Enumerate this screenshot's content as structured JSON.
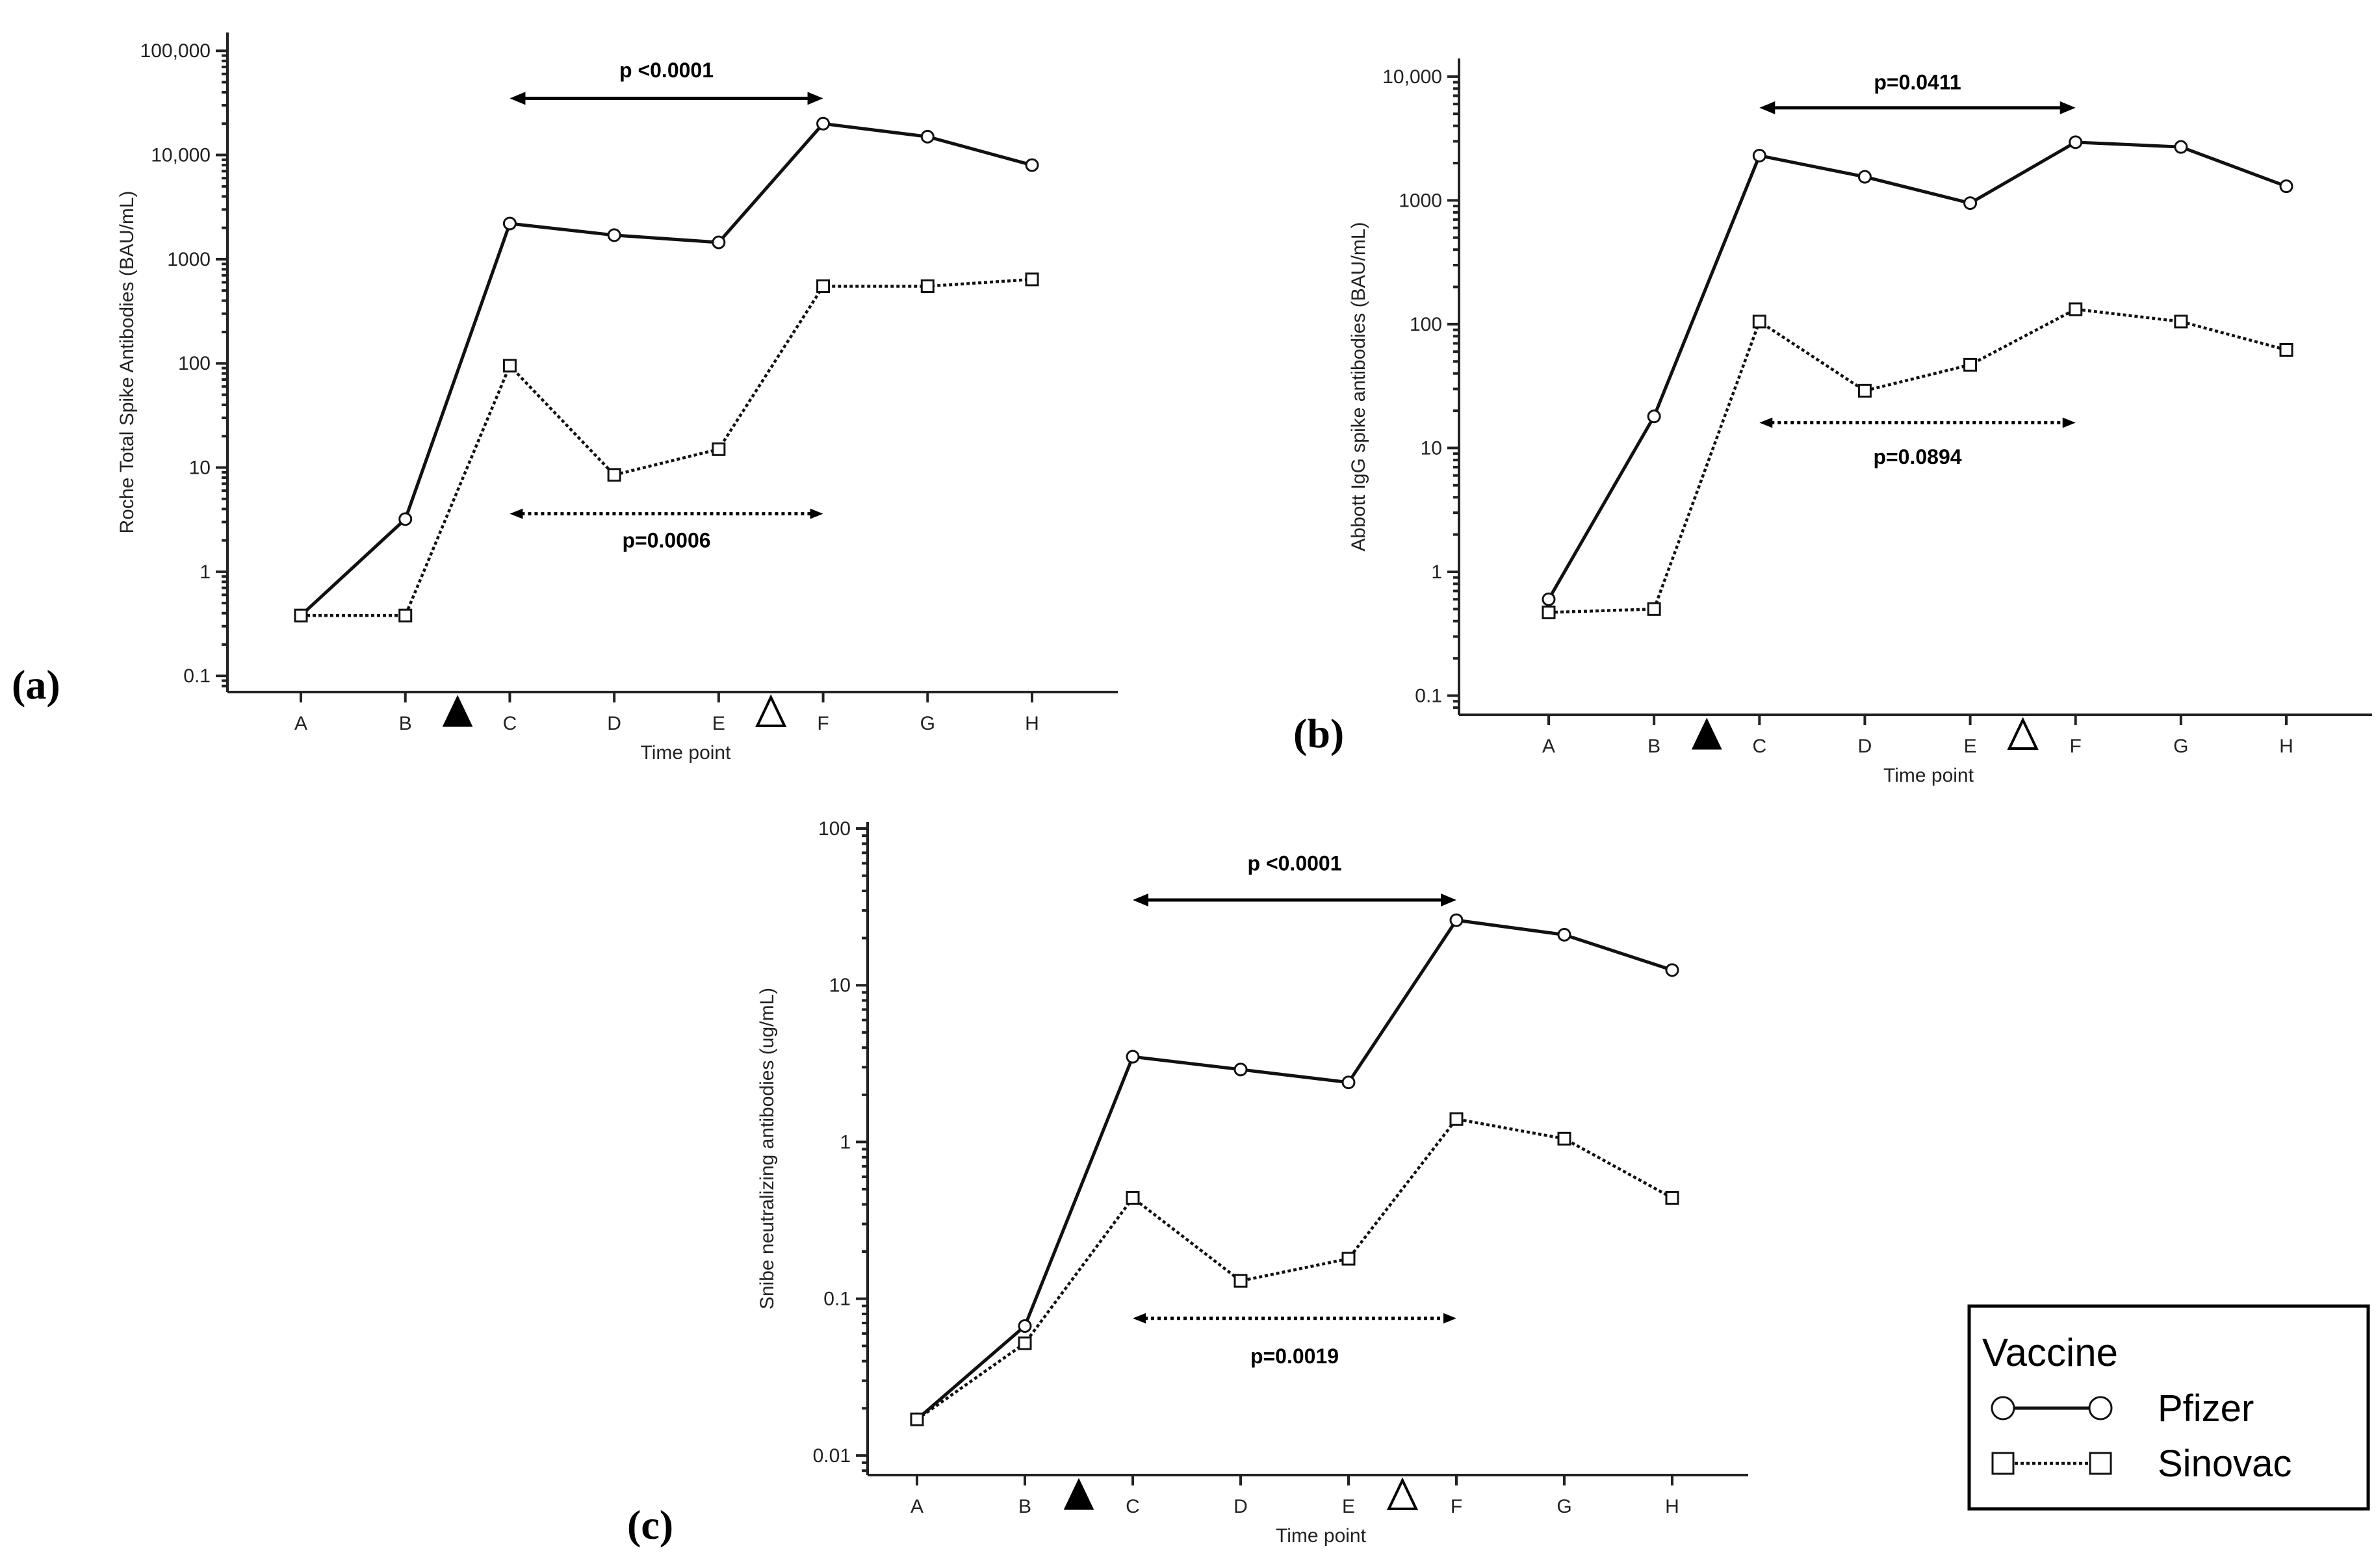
{
  "chart_data": [
    {
      "panel_label": "(a)",
      "type": "line",
      "xlabel": "Time point",
      "ylabel": "Roche Total Spike Antibodies (BAU/mL)",
      "yscale": "log",
      "ylim": [
        0.07,
        150000
      ],
      "y_ticks": [
        {
          "value": 0.1,
          "label": "0.1"
        },
        {
          "value": 1,
          "label": "1"
        },
        {
          "value": 10,
          "label": "10"
        },
        {
          "value": 100,
          "label": "100"
        },
        {
          "value": 1000,
          "label": "1000"
        },
        {
          "value": 10000,
          "label": "10,000"
        },
        {
          "value": 100000,
          "label": "100,000"
        }
      ],
      "categories": [
        "A",
        "B",
        "C",
        "D",
        "E",
        "F",
        "G",
        "H"
      ],
      "series": [
        {
          "name": "Pfizer",
          "values": [
            0.38,
            3.2,
            2200,
            1700,
            1450,
            20000,
            15000,
            8000
          ]
        },
        {
          "name": "Sinovac",
          "values": [
            0.38,
            0.38,
            95,
            8.5,
            15,
            550,
            550,
            640
          ]
        }
      ],
      "markers": [
        {
          "kind": "filled-triangle",
          "position": 1.5
        },
        {
          "kind": "open-triangle",
          "position": 4.5
        }
      ],
      "comparisons": [
        {
          "text": "p <0.0001",
          "style": "solid",
          "from": 2,
          "to": 5,
          "value": 35000,
          "label_value": 65000
        },
        {
          "text": "p=0.0006",
          "style": "dotted",
          "from": 2,
          "to": 5,
          "value": 3.6,
          "label_value": 2.0
        }
      ]
    },
    {
      "panel_label": "(b)",
      "type": "line",
      "xlabel": "Time point",
      "ylabel": "Abbott IgG spike antibodies (BAU/mL)",
      "yscale": "log",
      "ylim": [
        0.07,
        14000
      ],
      "y_ticks": [
        {
          "value": 0.1,
          "label": "0.1"
        },
        {
          "value": 1,
          "label": "1"
        },
        {
          "value": 10,
          "label": "10"
        },
        {
          "value": 100,
          "label": "100"
        },
        {
          "value": 1000,
          "label": "1000"
        },
        {
          "value": 10000,
          "label": "10,000"
        }
      ],
      "categories": [
        "A",
        "B",
        "C",
        "D",
        "E",
        "F",
        "G",
        "H"
      ],
      "series": [
        {
          "name": "Pfizer",
          "values": [
            0.6,
            18,
            2300,
            1550,
            950,
            2950,
            2700,
            1300
          ]
        },
        {
          "name": "Sinovac",
          "values": [
            0.47,
            0.5,
            105,
            29,
            47,
            132,
            105,
            62
          ]
        }
      ],
      "markers": [
        {
          "kind": "filled-triangle",
          "position": 1.5
        },
        {
          "kind": "open-triangle",
          "position": 4.5
        }
      ],
      "comparisons": [
        {
          "text": "p=0.0411",
          "style": "solid",
          "from": 2,
          "to": 5,
          "value": 5600,
          "label_value": 9000
        },
        {
          "text": "p=0.0894",
          "style": "dotted",
          "from": 2,
          "to": 5,
          "value": 16,
          "label_value": 8.5
        }
      ]
    },
    {
      "panel_label": "(c)",
      "type": "line",
      "xlabel": "Time point",
      "ylabel": "Snibe neutralizing antibodies (ug/mL)",
      "yscale": "log",
      "ylim": [
        0.0075,
        110
      ],
      "y_ticks": [
        {
          "value": 0.01,
          "label": "0.01"
        },
        {
          "value": 0.1,
          "label": "0.1"
        },
        {
          "value": 1,
          "label": "1"
        },
        {
          "value": 10,
          "label": "10"
        },
        {
          "value": 100,
          "label": "100"
        }
      ],
      "categories": [
        "A",
        "B",
        "C",
        "D",
        "E",
        "F",
        "G",
        "H"
      ],
      "series": [
        {
          "name": "Pfizer",
          "values": [
            0.017,
            0.067,
            3.5,
            2.9,
            2.4,
            26,
            21,
            12.5
          ]
        },
        {
          "name": "Sinovac",
          "values": [
            0.017,
            0.052,
            0.44,
            0.13,
            0.18,
            1.4,
            1.05,
            0.44
          ]
        }
      ],
      "markers": [
        {
          "kind": "filled-triangle",
          "position": 1.5
        },
        {
          "kind": "open-triangle",
          "position": 4.5
        }
      ],
      "comparisons": [
        {
          "text": "p <0.0001",
          "style": "solid",
          "from": 2,
          "to": 5,
          "value": 35,
          "label_value": 60
        },
        {
          "text": "p=0.0019",
          "style": "dotted",
          "from": 2,
          "to": 5,
          "value": 0.075,
          "label_value": 0.043
        }
      ]
    }
  ],
  "legend": {
    "title": "Vaccine",
    "entries": [
      {
        "name": "Pfizer",
        "marker": "circle",
        "line": "solid"
      },
      {
        "name": "Sinovac",
        "marker": "square",
        "line": "dotted"
      }
    ]
  }
}
